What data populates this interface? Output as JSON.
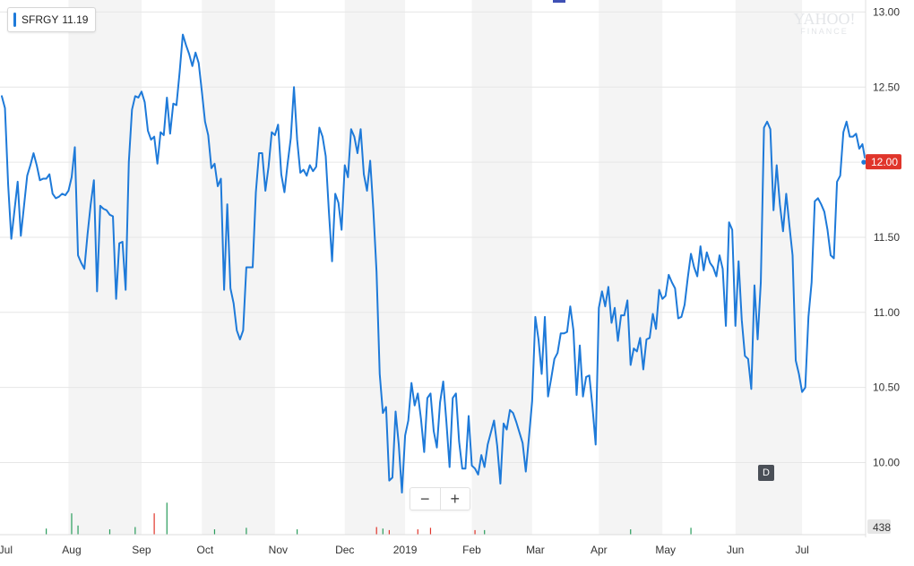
{
  "ticker": {
    "symbol": "SFRGY",
    "value": "11.19"
  },
  "watermark": {
    "main": "YAHOO!",
    "sub": "FINANCE"
  },
  "zoom": {
    "minus": "−",
    "plus": "+"
  },
  "period_badge": "D",
  "colors": {
    "line": "#1e7ad9",
    "current_price_badge": "#e0352b",
    "volume_up": "#2a9d5c",
    "volume_down": "#e0352b",
    "band": "#f4f4f4"
  },
  "chart_data": {
    "type": "line",
    "title": "",
    "xlabel": "",
    "ylabel": "",
    "ylim": [
      9.52,
      13.08
    ],
    "grid": true,
    "current_price": {
      "label": "12.00",
      "value": 12.0
    },
    "volume_label": "438",
    "y_ticks": [
      {
        "label": "13.00",
        "value": 13.0
      },
      {
        "label": "12.50",
        "value": 12.5
      },
      {
        "label": "12.00",
        "value": 12.0
      },
      {
        "label": "11.50",
        "value": 11.5
      },
      {
        "label": "11.00",
        "value": 11.0
      },
      {
        "label": "10.50",
        "value": 10.5
      },
      {
        "label": "10.00",
        "value": 10.0
      }
    ],
    "x_ticks": [
      {
        "label": "Jul",
        "index": 0
      },
      {
        "label": "Aug",
        "index": 22
      },
      {
        "label": "Sep",
        "index": 44
      },
      {
        "label": "Oct",
        "index": 64
      },
      {
        "label": "Nov",
        "index": 87
      },
      {
        "label": "Dec",
        "index": 108
      },
      {
        "label": "2019",
        "index": 127
      },
      {
        "label": "Feb",
        "index": 148
      },
      {
        "label": "Mar",
        "index": 168
      },
      {
        "label": "Apr",
        "index": 188
      },
      {
        "label": "May",
        "index": 209
      },
      {
        "label": "Jun",
        "index": 231
      },
      {
        "label": "Jul",
        "index": 252
      }
    ],
    "shaded_months": [
      [
        21,
        44
      ],
      [
        63,
        86
      ],
      [
        108,
        127
      ],
      [
        148,
        167
      ],
      [
        188,
        208
      ],
      [
        231,
        252
      ]
    ],
    "series": [
      {
        "values": [
          12.44,
          12.36,
          11.85,
          11.49,
          11.68,
          11.87,
          11.51,
          11.71,
          11.91,
          11.98,
          12.06,
          11.98,
          11.88,
          11.89,
          11.89,
          11.92,
          11.79,
          11.76,
          11.77,
          11.79,
          11.78,
          11.81,
          11.9,
          12.1,
          11.38,
          11.33,
          11.29,
          11.52,
          11.72,
          11.88,
          11.14,
          11.71,
          11.69,
          11.68,
          11.65,
          11.64,
          11.09,
          11.46,
          11.47,
          11.15,
          12.0,
          12.35,
          12.44,
          12.43,
          12.47,
          12.4,
          12.21,
          12.15,
          12.17,
          11.99,
          12.2,
          12.18,
          12.43,
          12.19,
          12.39,
          12.38,
          12.6,
          12.85,
          12.78,
          12.72,
          12.64,
          12.73,
          12.66,
          12.47,
          12.27,
          12.18,
          11.96,
          11.99,
          11.84,
          11.89,
          11.15,
          11.72,
          11.16,
          11.06,
          10.88,
          10.82,
          10.88,
          11.3,
          11.3,
          11.3,
          11.8,
          12.06,
          12.06,
          11.81,
          11.97,
          12.2,
          12.18,
          12.25,
          11.92,
          11.8,
          11.99,
          12.16,
          12.5,
          12.15,
          11.93,
          11.95,
          11.91,
          11.98,
          11.94,
          11.97,
          12.23,
          12.17,
          12.04,
          11.67,
          11.34,
          11.79,
          11.73,
          11.55,
          11.98,
          11.9,
          12.22,
          12.17,
          12.06,
          12.22,
          11.92,
          11.81,
          12.01,
          11.68,
          11.27,
          10.59,
          10.33,
          10.37,
          9.88,
          9.9,
          10.34,
          10.12,
          9.8,
          10.18,
          10.28,
          10.53,
          10.38,
          10.46,
          10.29,
          10.07,
          10.43,
          10.46,
          10.21,
          10.1,
          10.4,
          10.54,
          10.27,
          9.97,
          10.43,
          10.46,
          10.14,
          9.96,
          9.96,
          10.31,
          9.98,
          9.96,
          9.92,
          10.05,
          9.97,
          10.12,
          10.2,
          10.28,
          10.11,
          9.86,
          10.26,
          10.22,
          10.35,
          10.33,
          10.27,
          10.2,
          10.13,
          9.94,
          10.17,
          10.41,
          10.97,
          10.82,
          10.59,
          10.97,
          10.44,
          10.56,
          10.69,
          10.73,
          10.86,
          10.86,
          10.87,
          11.04,
          10.88,
          10.45,
          10.78,
          10.44,
          10.57,
          10.58,
          10.37,
          10.12,
          11.03,
          11.14,
          11.04,
          11.17,
          10.93,
          11.03,
          10.81,
          10.98,
          10.98,
          11.08,
          10.65,
          10.76,
          10.74,
          10.83,
          10.62,
          10.82,
          10.83,
          10.99,
          10.89,
          11.15,
          11.09,
          11.11,
          11.25,
          11.2,
          11.16,
          10.96,
          10.97,
          11.05,
          11.23,
          11.39,
          11.3,
          11.24,
          11.44,
          11.28,
          11.4,
          11.33,
          11.3,
          11.24,
          11.38,
          11.29,
          10.91,
          11.6,
          11.55,
          10.91,
          11.34,
          10.95,
          10.71,
          10.69,
          10.49,
          11.18,
          10.82,
          11.2,
          12.23,
          12.27,
          12.22,
          11.68,
          11.98,
          11.72,
          11.54,
          11.79,
          11.58,
          11.38,
          10.68,
          10.59,
          10.47,
          10.5,
          10.97,
          11.2,
          11.74,
          11.76,
          11.72,
          11.67,
          11.55,
          11.38,
          11.36,
          11.87,
          11.91,
          12.2,
          12.27,
          12.17,
          12.17,
          12.19,
          12.09,
          12.12,
          12.0
        ]
      }
    ],
    "volume": {
      "index": [
        14,
        22,
        24,
        34,
        42,
        48,
        52,
        67,
        77,
        93,
        118,
        120,
        122,
        131,
        135,
        149,
        152,
        198,
        217
      ],
      "values": [
        40,
        140,
        60,
        35,
        50,
        140,
        210,
        35,
        45,
        35,
        50,
        40,
        30,
        35,
        45,
        30,
        30,
        35,
        45
      ],
      "direction": [
        "up",
        "up",
        "up",
        "up",
        "up",
        "down",
        "up",
        "up",
        "up",
        "up",
        "down",
        "up",
        "down",
        "down",
        "down",
        "down",
        "up",
        "up",
        "up"
      ]
    }
  }
}
